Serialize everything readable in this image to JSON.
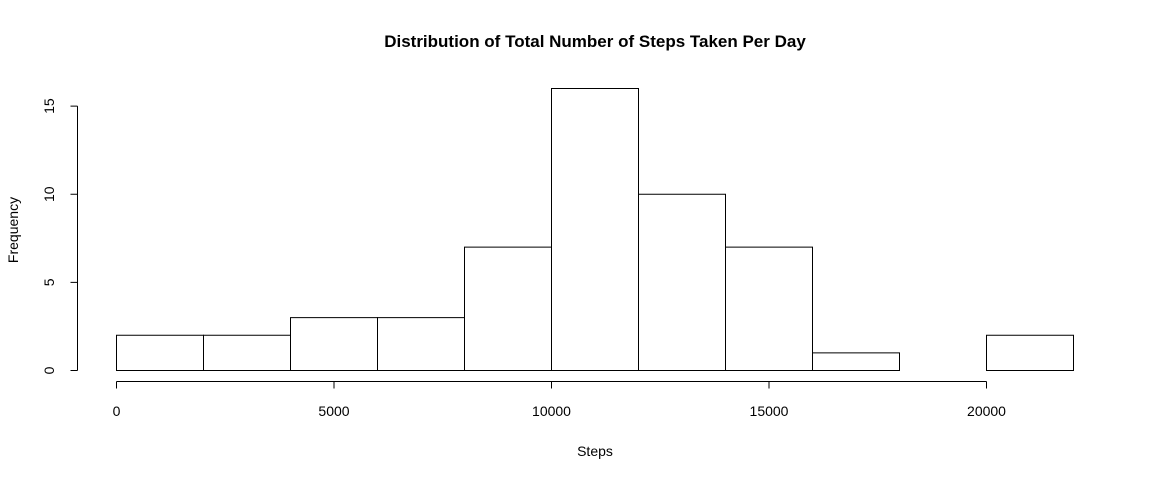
{
  "chart_data": {
    "type": "bar",
    "title": "Distribution of Total Number of Steps Taken Per Day",
    "xlabel": "Steps",
    "ylabel": "Frequency",
    "bin_edges": [
      0,
      2000,
      4000,
      6000,
      8000,
      10000,
      12000,
      14000,
      16000,
      18000,
      20000,
      22000
    ],
    "values": [
      2,
      2,
      3,
      3,
      7,
      16,
      10,
      7,
      1,
      0,
      2
    ],
    "xlim": [
      0,
      22000
    ],
    "ylim": [
      0,
      16
    ],
    "x_ticks": [
      0,
      5000,
      10000,
      15000,
      20000
    ],
    "x_tick_labels": [
      "0",
      "5000",
      "10000",
      "15000",
      "20000"
    ],
    "y_ticks": [
      0,
      5,
      10,
      15
    ],
    "y_tick_labels": [
      "0",
      "5",
      "10",
      "15"
    ],
    "grid": false,
    "legend": "none"
  }
}
